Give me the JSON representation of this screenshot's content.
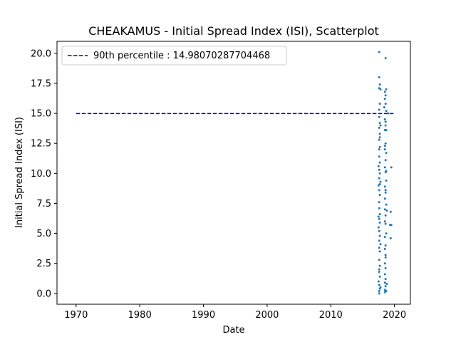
{
  "chart_data": {
    "type": "scatter",
    "title": "CHEAKAMUS - Initial Spread Index (ISI), Scatterplot",
    "xlabel": "Date",
    "ylabel": "Initial Spread Index (ISI)",
    "xlim": [
      1967.0,
      2022.5
    ],
    "ylim": [
      -0.9,
      21.0
    ],
    "x_ticks": [
      1970,
      1980,
      1990,
      2000,
      2010,
      2020
    ],
    "x_tick_labels": [
      "1970",
      "1980",
      "1990",
      "2000",
      "2010",
      "2020"
    ],
    "y_ticks": [
      0.0,
      2.5,
      5.0,
      7.5,
      10.0,
      12.5,
      15.0,
      17.5,
      20.0
    ],
    "y_tick_labels": [
      "0.0",
      "2.5",
      "5.0",
      "7.5",
      "10.0",
      "12.5",
      "15.0",
      "17.5",
      "20.0"
    ],
    "reference_line": {
      "label": "90th percentile : 14.98070287704468",
      "y": 14.98070287704468,
      "x_range": [
        1970.0,
        2020.0
      ],
      "color": "#0000cc",
      "style": "dashed"
    },
    "legend_placement": "upper-left",
    "grid": false,
    "series": [
      {
        "color": "#1f77b4",
        "points": [
          [
            2017.6,
            20.1
          ],
          [
            2018.6,
            19.6
          ],
          [
            2017.6,
            18.0
          ],
          [
            2017.7,
            17.4
          ],
          [
            2017.6,
            17.1
          ],
          [
            2017.8,
            17.0
          ],
          [
            2018.7,
            17.0
          ],
          [
            2018.5,
            16.8
          ],
          [
            2018.6,
            16.5
          ],
          [
            2018.5,
            16.2
          ],
          [
            2017.7,
            15.8
          ],
          [
            2018.6,
            15.8
          ],
          [
            2018.4,
            15.5
          ],
          [
            2017.6,
            15.3
          ],
          [
            2018.7,
            15.2
          ],
          [
            2019.0,
            15.0
          ],
          [
            2017.6,
            14.7
          ],
          [
            2018.5,
            14.5
          ],
          [
            2017.7,
            14.2
          ],
          [
            2018.6,
            14.3
          ],
          [
            2017.8,
            14.0
          ],
          [
            2017.6,
            13.8
          ],
          [
            2018.5,
            13.6
          ],
          [
            2018.7,
            13.6
          ],
          [
            2017.7,
            13.3
          ],
          [
            2017.6,
            12.8
          ],
          [
            2018.6,
            12.5
          ],
          [
            2017.7,
            12.2
          ],
          [
            2018.5,
            12.0
          ],
          [
            2018.7,
            11.7
          ],
          [
            2017.6,
            11.4
          ],
          [
            2018.6,
            11.1
          ],
          [
            2017.7,
            10.9
          ],
          [
            2017.5,
            10.6
          ],
          [
            2018.5,
            10.5
          ],
          [
            2019.5,
            10.5
          ],
          [
            2017.6,
            10.3
          ],
          [
            2018.6,
            10.1
          ],
          [
            2017.7,
            10.0
          ],
          [
            2017.6,
            9.6
          ],
          [
            2018.7,
            9.4
          ],
          [
            2017.7,
            9.1
          ],
          [
            2017.5,
            9.0
          ],
          [
            2018.5,
            8.9
          ],
          [
            2017.6,
            8.6
          ],
          [
            2018.6,
            8.4
          ],
          [
            2017.7,
            8.2
          ],
          [
            2018.5,
            7.9
          ],
          [
            2017.6,
            7.6
          ],
          [
            2018.7,
            7.4
          ],
          [
            2017.6,
            7.1
          ],
          [
            2018.5,
            7.0
          ],
          [
            2018.8,
            6.9
          ],
          [
            2019.4,
            6.8
          ],
          [
            2017.7,
            6.6
          ],
          [
            2018.6,
            6.5
          ],
          [
            2017.6,
            6.2
          ],
          [
            2018.5,
            6.0
          ],
          [
            2017.7,
            5.9
          ],
          [
            2018.6,
            5.8
          ],
          [
            2019.3,
            5.7
          ],
          [
            2019.5,
            5.7
          ],
          [
            2017.5,
            5.5
          ],
          [
            2017.6,
            5.2
          ],
          [
            2018.7,
            5.0
          ],
          [
            2017.7,
            4.8
          ],
          [
            2018.5,
            4.7
          ],
          [
            2019.4,
            4.6
          ],
          [
            2017.6,
            4.4
          ],
          [
            2017.8,
            4.1
          ],
          [
            2018.6,
            4.0
          ],
          [
            2017.6,
            3.8
          ],
          [
            2018.5,
            3.7
          ],
          [
            2017.7,
            3.5
          ],
          [
            2018.6,
            3.2
          ],
          [
            2017.6,
            2.8
          ],
          [
            2018.5,
            2.5
          ],
          [
            2017.7,
            2.3
          ],
          [
            2018.6,
            2.1
          ],
          [
            2017.6,
            1.8
          ],
          [
            2018.5,
            1.6
          ],
          [
            2017.7,
            1.4
          ],
          [
            2018.6,
            1.2
          ],
          [
            2017.5,
            1.0
          ],
          [
            2018.5,
            0.9
          ],
          [
            2017.6,
            0.7
          ],
          [
            2018.6,
            0.6
          ],
          [
            2017.7,
            0.4
          ],
          [
            2018.5,
            0.3
          ],
          [
            2017.6,
            0.2
          ],
          [
            2018.7,
            0.2
          ],
          [
            2017.6,
            0.0
          ],
          [
            2018.5,
            0.1
          ],
          [
            2017.8,
            0.5
          ],
          [
            2018.8,
            0.8
          ],
          [
            2017.6,
            2.0
          ],
          [
            2018.6,
            3.0
          ],
          [
            2017.5,
            6.4
          ],
          [
            2018.6,
            8.6
          ],
          [
            2017.8,
            9.3
          ],
          [
            2018.7,
            10.2
          ],
          [
            2017.6,
            12.0
          ],
          [
            2018.5,
            12.3
          ],
          [
            2017.7,
            13.0
          ],
          [
            2018.6,
            14.0
          ]
        ]
      }
    ]
  }
}
